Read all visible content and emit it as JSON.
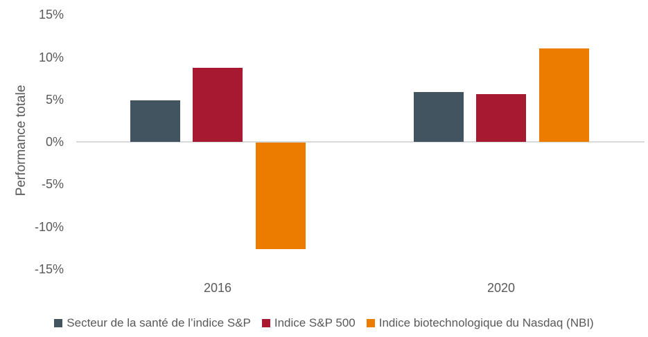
{
  "chart_data": {
    "type": "bar",
    "title": "",
    "ylabel": "Performance totale",
    "xlabel": "",
    "categories": [
      "2016",
      "2020"
    ],
    "series": [
      {
        "name": "Secteur de la santé de l’indice S&P",
        "color": "#42545F",
        "values": [
          4.9,
          5.9
        ]
      },
      {
        "name": "Indice S&P 500",
        "color": "#A71930",
        "values": [
          8.7,
          5.6
        ]
      },
      {
        "name": "Indice biotechnologique du Nasdaq (NBI)",
        "color": "#EC7C00",
        "values": [
          -12.6,
          11.0
        ]
      }
    ],
    "y_ticks": [
      "15%",
      "10%",
      "5%",
      "0%",
      "-5%",
      "-10%",
      "-15%"
    ],
    "ylim": [
      -15,
      15
    ],
    "unit": "%",
    "grid": false,
    "legend_position": "bottom",
    "axis_line_color": "#D9D9D9",
    "text_color": "#595959"
  }
}
